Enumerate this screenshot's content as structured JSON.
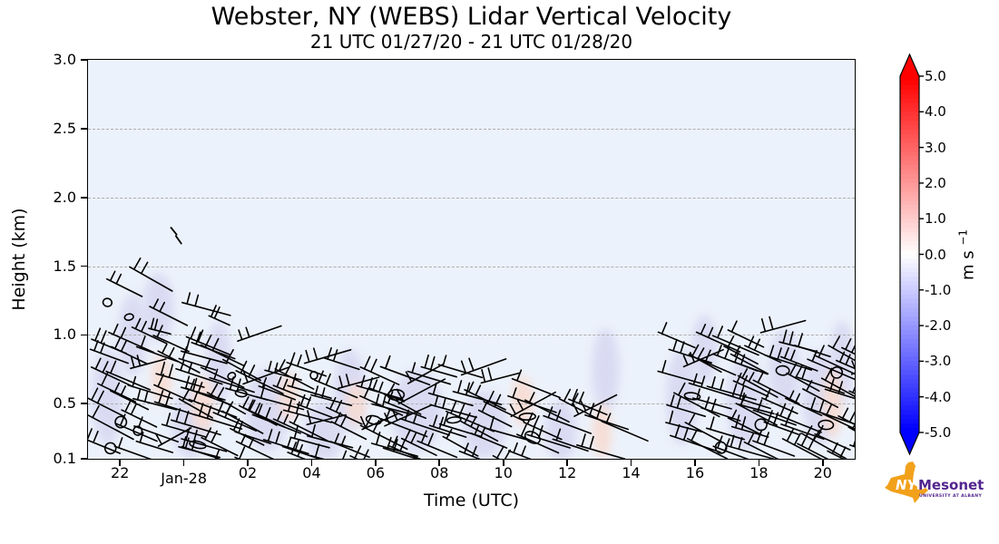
{
  "figure": {
    "title": "Webster, NY (WEBS) Lidar Vertical Velocity",
    "subtitle": "21 UTC 01/27/20 - 21 UTC 01/28/20"
  },
  "chart_data": {
    "type": "heatmap",
    "title": "Webster, NY (WEBS) Lidar Vertical Velocity",
    "subtitle": "21 UTC 01/27/20 - 21 UTC 01/28/20",
    "xlabel": "Time (UTC)",
    "ylabel": "Height (km)",
    "time_start": "21 UTC 01/27/20",
    "time_end": "21 UTC 01/28/20",
    "xlim_hours_from_start": [
      0,
      24
    ],
    "ylim": [
      0.1,
      3.0
    ],
    "grid": "horizontal dashed at 0.5,1.0,1.5,2.0,2.5 km",
    "x_ticks": [
      {
        "label": "22",
        "t": 1
      },
      {
        "label": "Jan-28",
        "t": 3,
        "date": true
      },
      {
        "label": "02",
        "t": 5
      },
      {
        "label": "04",
        "t": 7
      },
      {
        "label": "06",
        "t": 9
      },
      {
        "label": "08",
        "t": 11
      },
      {
        "label": "10",
        "t": 13
      },
      {
        "label": "12",
        "t": 15
      },
      {
        "label": "14",
        "t": 17
      },
      {
        "label": "16",
        "t": 19
      },
      {
        "label": "18",
        "t": 21
      },
      {
        "label": "20",
        "t": 23
      }
    ],
    "y_ticks": [
      {
        "label": "3.0",
        "km": 3.0
      },
      {
        "label": "2.5",
        "km": 2.5
      },
      {
        "label": "2.0",
        "km": 2.0
      },
      {
        "label": "1.5",
        "km": 1.5
      },
      {
        "label": "1.0",
        "km": 1.0
      },
      {
        "label": "0.5",
        "km": 0.5
      },
      {
        "label": "0.1",
        "km": 0.1
      }
    ],
    "colorbar": {
      "unit_base": "m s",
      "unit_sup": "−1",
      "vmin": -5.0,
      "vmax": 5.0,
      "colormap": "blue-white-red",
      "extend": "both",
      "ticks": [
        {
          "label": "5.0",
          "v": 5.0
        },
        {
          "label": "4.0",
          "v": 4.0
        },
        {
          "label": "3.0",
          "v": 3.0
        },
        {
          "label": "2.0",
          "v": 2.0
        },
        {
          "label": "1.0",
          "v": 1.0
        },
        {
          "label": "0.0",
          "v": 0.0
        },
        {
          "label": "-1.0",
          "v": -1.0
        },
        {
          "label": "-2.0",
          "v": -2.0
        },
        {
          "label": "-3.0",
          "v": -3.0
        },
        {
          "label": "-4.0",
          "v": -4.0
        },
        {
          "label": "-5.0",
          "v": -5.0
        }
      ]
    },
    "field_summary": "Vertical velocity mostly near 0 m/s (pale blue background); weak patches of about -0.5 m/s (lavender) and +0.5 m/s (pink) below ~1.2 km. Wind barbs and 0-contours confined below ~1.5 km; data gap from ~12:30 to ~15:00 UTC on Jan 28.",
    "palette": {
      "background_near_zero": "#ecf2fb",
      "negative_patch": "#d9d9f2",
      "positive_patch": "#f8dcd2",
      "barb_color": "#000000",
      "gridline_color": "#adadad"
    },
    "barb_clusters": [
      {
        "t0": 0.1,
        "t1": 3.1,
        "h0": 0.12,
        "h1": 1.02,
        "spacing": 24,
        "loops": 1
      },
      {
        "t0": 0.3,
        "t1": 4.4,
        "h0": 0.95,
        "h1": 1.45,
        "spacing": 42,
        "loops": 0.7,
        "sparse": true
      },
      {
        "t0": 3.1,
        "t1": 4.7,
        "h0": 0.12,
        "h1": 0.92,
        "spacing": 24,
        "loops": 1
      },
      {
        "t0": 4.7,
        "t1": 6.3,
        "h0": 0.12,
        "h1": 0.76,
        "spacing": 24,
        "loops": 1
      },
      {
        "t0": 6.3,
        "t1": 9.2,
        "h0": 0.12,
        "h1": 0.78,
        "spacing": 24,
        "loops": 1
      },
      {
        "t0": 9.2,
        "t1": 11.8,
        "h0": 0.12,
        "h1": 0.74,
        "spacing": 24,
        "loops": 1
      },
      {
        "t0": 11.8,
        "t1": 13.8,
        "h0": 0.12,
        "h1": 0.68,
        "spacing": 24,
        "loops": 1
      },
      {
        "t0": 13.8,
        "t1": 15.5,
        "h0": 0.12,
        "h1": 0.5,
        "spacing": 25,
        "loops": 0.8
      },
      {
        "t0": 15.85,
        "t1": 16.6,
        "h0": 0.15,
        "h1": 0.5,
        "spacing": 38,
        "loops": 0.3,
        "sparse": true
      },
      {
        "t0": 18.1,
        "t1": 20.3,
        "h0": 0.12,
        "h1": 1.02,
        "spacing": 24,
        "loops": 1
      },
      {
        "t0": 20.3,
        "t1": 22.3,
        "h0": 0.12,
        "h1": 0.97,
        "spacing": 24,
        "loops": 1
      },
      {
        "t0": 22.3,
        "t1": 24.0,
        "h0": 0.12,
        "h1": 0.95,
        "spacing": 24,
        "loops": 1
      }
    ],
    "isolated_marks": [
      {
        "t": 2.6,
        "h": 1.78
      },
      {
        "t": 2.75,
        "h": 1.72
      }
    ],
    "shading_patches": [
      {
        "t": 0.6,
        "h": 0.55,
        "rt": 0.5,
        "rh": 0.35,
        "c": "neg"
      },
      {
        "t": 1.4,
        "h": 1.0,
        "rt": 0.45,
        "rh": 0.3,
        "c": "neg"
      },
      {
        "t": 2.2,
        "h": 1.2,
        "rt": 0.5,
        "rh": 0.25,
        "c": "neg"
      },
      {
        "t": 3.2,
        "h": 0.35,
        "rt": 0.6,
        "rh": 0.25,
        "c": "neg"
      },
      {
        "t": 4.1,
        "h": 0.8,
        "rt": 0.4,
        "rh": 0.3,
        "c": "neg"
      },
      {
        "t": 5.6,
        "h": 0.45,
        "rt": 0.7,
        "rh": 0.3,
        "c": "neg"
      },
      {
        "t": 7.4,
        "h": 0.3,
        "rt": 0.6,
        "rh": 0.22,
        "c": "neg"
      },
      {
        "t": 8.2,
        "h": 0.6,
        "rt": 0.5,
        "rh": 0.3,
        "c": "neg"
      },
      {
        "t": 10.3,
        "h": 0.45,
        "rt": 0.8,
        "rh": 0.3,
        "c": "neg"
      },
      {
        "t": 12.4,
        "h": 0.35,
        "rt": 0.7,
        "rh": 0.25,
        "c": "neg"
      },
      {
        "t": 14.8,
        "h": 0.3,
        "rt": 0.5,
        "rh": 0.22,
        "c": "neg"
      },
      {
        "t": 16.2,
        "h": 0.75,
        "rt": 0.45,
        "rh": 0.3,
        "c": "neg"
      },
      {
        "t": 18.6,
        "h": 0.55,
        "rt": 0.5,
        "rh": 0.35,
        "c": "neg"
      },
      {
        "t": 19.3,
        "h": 0.9,
        "rt": 0.4,
        "rh": 0.25,
        "c": "neg"
      },
      {
        "t": 20.6,
        "h": 0.5,
        "rt": 0.6,
        "rh": 0.35,
        "c": "neg"
      },
      {
        "t": 21.8,
        "h": 0.75,
        "rt": 0.5,
        "rh": 0.3,
        "c": "neg"
      },
      {
        "t": 22.9,
        "h": 0.55,
        "rt": 0.55,
        "rh": 0.35,
        "c": "neg"
      },
      {
        "t": 23.6,
        "h": 0.8,
        "rt": 0.4,
        "rh": 0.3,
        "c": "neg"
      },
      {
        "t": 2.3,
        "h": 0.68,
        "rt": 0.3,
        "rh": 0.18,
        "c": "pos"
      },
      {
        "t": 3.6,
        "h": 0.5,
        "rt": 0.35,
        "rh": 0.2,
        "c": "pos"
      },
      {
        "t": 6.3,
        "h": 0.55,
        "rt": 0.3,
        "rh": 0.18,
        "c": "pos"
      },
      {
        "t": 8.4,
        "h": 0.5,
        "rt": 0.3,
        "rh": 0.16,
        "c": "pos"
      },
      {
        "t": 13.6,
        "h": 0.52,
        "rt": 0.35,
        "rh": 0.18,
        "c": "pos"
      },
      {
        "t": 16.1,
        "h": 0.3,
        "rt": 0.3,
        "rh": 0.2,
        "c": "pos"
      },
      {
        "t": 23.3,
        "h": 0.5,
        "rt": 0.3,
        "rh": 0.25,
        "c": "pos"
      }
    ]
  },
  "logo": {
    "nys": "NYS",
    "mesonet": "Mesonet",
    "tagline": "UNIVERSITY AT ALBANY",
    "state_color": "#f2a11b",
    "text_color": "#52258f"
  }
}
